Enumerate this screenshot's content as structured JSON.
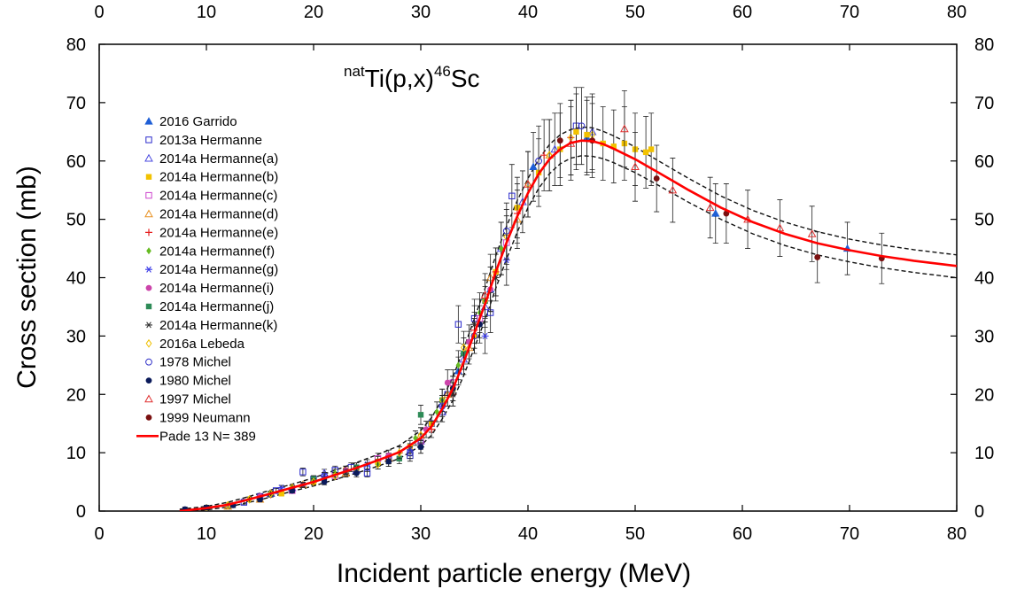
{
  "chart_data": {
    "type": "scatter",
    "title": {
      "pre_sup": "nat",
      "main1": "Ti(p,x)",
      "mid_sup": "46",
      "main2": "Sc"
    },
    "xlabel": "Incident particle  energy (MeV)",
    "ylabel": "Cross section (mb)",
    "xlim": [
      0,
      80
    ],
    "ylim": [
      0,
      80
    ],
    "x_ticks": [
      "0",
      "10",
      "20",
      "30",
      "40",
      "50",
      "60",
      "70",
      "80"
    ],
    "y_ticks": [
      "0",
      "10",
      "20",
      "30",
      "40",
      "50",
      "60",
      "70",
      "80"
    ],
    "grid": false,
    "legend_position": "upper-left",
    "series": [
      {
        "name": "2016 Garrido",
        "marker": "triangle-filled",
        "color": "#1f5fd6",
        "points": [
          [
            33.5,
            24
          ],
          [
            36.5,
            38
          ],
          [
            40.5,
            59
          ],
          [
            45.5,
            64
          ],
          [
            57.5,
            51
          ],
          [
            69.8,
            45
          ]
        ]
      },
      {
        "name": "2013a Hermanne",
        "marker": "square-open",
        "color": "#2a2acc",
        "points": [
          [
            13.5,
            1.5
          ],
          [
            15,
            2.5
          ],
          [
            16.5,
            3.5
          ],
          [
            19,
            6.7
          ],
          [
            20,
            5.5
          ],
          [
            22,
            7
          ],
          [
            23.5,
            7.5
          ],
          [
            25,
            6.5
          ],
          [
            27,
            9
          ],
          [
            29,
            9.5
          ],
          [
            31,
            15
          ],
          [
            32.5,
            20
          ],
          [
            33.5,
            32
          ],
          [
            35,
            33
          ],
          [
            36.5,
            34
          ],
          [
            38.5,
            54
          ],
          [
            44.5,
            66
          ]
        ]
      },
      {
        "name": "2014a Hermanne(a)",
        "marker": "triangle-open",
        "color": "#4a4ae0",
        "points": [
          [
            16,
            3
          ],
          [
            18,
            4
          ],
          [
            21,
            6.5
          ],
          [
            24,
            7
          ],
          [
            27,
            9
          ],
          [
            30,
            12
          ],
          [
            32,
            17
          ],
          [
            34,
            26
          ],
          [
            36,
            35
          ],
          [
            37.5,
            45
          ],
          [
            39.5,
            53
          ],
          [
            42.5,
            62
          ],
          [
            46,
            65
          ]
        ]
      },
      {
        "name": "2014a Hermanne(b)",
        "marker": "square-filled",
        "color": "#f2c200",
        "points": [
          [
            17,
            3
          ],
          [
            20,
            5
          ],
          [
            23,
            7
          ],
          [
            26,
            8.5
          ],
          [
            29,
            11
          ],
          [
            31,
            15
          ],
          [
            33,
            21
          ],
          [
            35,
            30
          ],
          [
            37,
            41
          ],
          [
            39,
            52
          ],
          [
            41,
            58
          ],
          [
            43,
            62
          ],
          [
            44.5,
            65
          ],
          [
            45.5,
            64.5
          ],
          [
            47,
            63
          ],
          [
            48,
            62.5
          ],
          [
            49,
            63
          ],
          [
            50,
            62
          ],
          [
            51,
            61.5
          ],
          [
            51.5,
            62
          ]
        ]
      },
      {
        "name": "2014a  Hermanne(c)",
        "marker": "square-open",
        "color": "#cc44cc",
        "points": [
          [
            18,
            3.5
          ],
          [
            22,
            6
          ],
          [
            26,
            9
          ],
          [
            30,
            12
          ],
          [
            33,
            22
          ],
          [
            35.5,
            33
          ],
          [
            38,
            46
          ]
        ]
      },
      {
        "name": "2014a Hermanne(d)",
        "marker": "triangle-open",
        "color": "#e89020",
        "points": [
          [
            12,
            0.8
          ],
          [
            15,
            2
          ],
          [
            19,
            4.5
          ],
          [
            23,
            6.5
          ],
          [
            27,
            9
          ],
          [
            30,
            13
          ],
          [
            32.5,
            20
          ],
          [
            34.5,
            28
          ],
          [
            36.5,
            40
          ],
          [
            39,
            50
          ],
          [
            42,
            61
          ]
        ]
      },
      {
        "name": "2014a Hermanne(e)",
        "marker": "plus",
        "color": "#e62020",
        "points": [
          [
            16,
            2.8
          ],
          [
            20,
            5
          ],
          [
            24,
            7.5
          ],
          [
            28,
            10
          ],
          [
            31,
            14
          ],
          [
            33,
            20
          ],
          [
            35,
            31
          ],
          [
            37,
            41
          ],
          [
            39,
            51
          ],
          [
            41.5,
            61
          ],
          [
            44,
            64
          ]
        ]
      },
      {
        "name": "2014a Hermanne(f)",
        "marker": "diamond-filled",
        "color": "#66bb22",
        "points": [
          [
            14,
            2
          ],
          [
            18,
            4
          ],
          [
            22,
            6.5
          ],
          [
            26,
            8
          ],
          [
            29.5,
            12.5
          ],
          [
            31.5,
            17
          ],
          [
            33.5,
            25
          ],
          [
            35.5,
            34
          ],
          [
            37.5,
            45
          ]
        ]
      },
      {
        "name": "2014a Hermanne(g)",
        "marker": "asterisk",
        "color": "#3a3ae8",
        "points": [
          [
            17,
            4
          ],
          [
            21,
            6
          ],
          [
            25,
            8
          ],
          [
            29,
            10.5
          ],
          [
            32,
            18
          ],
          [
            34,
            27
          ],
          [
            36,
            30
          ],
          [
            38,
            43
          ]
        ]
      },
      {
        "name": "2014a Hermanne(i)",
        "marker": "circle-filled",
        "color": "#cc44aa",
        "points": [
          [
            15,
            2.5
          ],
          [
            19,
            4.5
          ],
          [
            23,
            7
          ],
          [
            27,
            9.5
          ],
          [
            30.5,
            14
          ],
          [
            32.5,
            22
          ],
          [
            34.5,
            29
          ],
          [
            36.5,
            38
          ]
        ]
      },
      {
        "name": "2014a Hermanne(j)",
        "marker": "square-filled",
        "color": "#2e8b57",
        "points": [
          [
            16,
            3
          ],
          [
            20,
            5.5
          ],
          [
            24,
            7.5
          ],
          [
            28,
            9
          ],
          [
            30,
            16.5
          ],
          [
            32,
            19
          ],
          [
            34,
            27
          ],
          [
            36,
            36
          ]
        ]
      },
      {
        "name": "2014a Hermanne(k)",
        "marker": "asterisk",
        "color": "#333333",
        "points": [
          [
            15,
            2
          ],
          [
            19,
            4.5
          ],
          [
            23,
            6.5
          ],
          [
            27,
            8.5
          ],
          [
            30,
            11
          ],
          [
            33,
            20
          ],
          [
            35,
            32
          ],
          [
            37,
            40
          ]
        ]
      },
      {
        "name": "2016a Lebeda",
        "marker": "diamond-open",
        "color": "#f0c000",
        "points": [
          [
            10,
            0.5
          ],
          [
            12,
            1
          ],
          [
            14,
            2
          ],
          [
            16,
            3
          ],
          [
            18,
            4
          ],
          [
            20,
            5
          ],
          [
            22,
            6
          ],
          [
            24,
            7
          ],
          [
            26,
            8
          ],
          [
            28,
            10
          ],
          [
            30,
            13
          ],
          [
            32,
            19
          ],
          [
            34,
            28
          ],
          [
            36,
            36
          ],
          [
            38,
            47
          ],
          [
            40,
            56
          ],
          [
            42,
            61
          ],
          [
            44,
            64
          ],
          [
            46,
            64.5
          ]
        ]
      },
      {
        "name": "1978 Michel",
        "marker": "circle-open",
        "color": "#3030c8",
        "points": [
          [
            21,
            6
          ],
          [
            25,
            7.5
          ],
          [
            29,
            10
          ],
          [
            32,
            18
          ],
          [
            35,
            30
          ],
          [
            38,
            48
          ],
          [
            41,
            60
          ],
          [
            45,
            66
          ]
        ]
      },
      {
        "name": "1980 Michel",
        "marker": "circle-filled",
        "color": "#0a1a5a",
        "points": [
          [
            8,
            0.3
          ],
          [
            10,
            0.6
          ],
          [
            12.5,
            1
          ],
          [
            15,
            2
          ],
          [
            18,
            3.5
          ],
          [
            21,
            5
          ],
          [
            24,
            6.5
          ],
          [
            27,
            8.5
          ],
          [
            30,
            11
          ],
          [
            33,
            21
          ],
          [
            35.5,
            32
          ]
        ]
      },
      {
        "name": "1997 Michel",
        "marker": "triangle-open",
        "color": "#e03030",
        "points": [
          [
            36,
            37
          ],
          [
            40,
            56
          ],
          [
            44,
            63
          ],
          [
            49,
            65.5
          ],
          [
            50,
            59
          ],
          [
            53.5,
            55
          ],
          [
            57,
            52
          ],
          [
            60.5,
            50
          ],
          [
            63.5,
            48.5
          ],
          [
            66.5,
            47.5
          ]
        ]
      },
      {
        "name": "1999 Neumann",
        "marker": "circle-filled",
        "color": "#7a1010",
        "points": [
          [
            43,
            63.5
          ],
          [
            46,
            63.5
          ],
          [
            52,
            57
          ],
          [
            58.5,
            51
          ],
          [
            67,
            43.5
          ],
          [
            73,
            43.3
          ]
        ]
      }
    ],
    "fit": {
      "name": "Pade 13 N= 389",
      "color": "#ff0000",
      "x": [
        7.5,
        10,
        12,
        14,
        16,
        18,
        20,
        22,
        24,
        26,
        28,
        30,
        31,
        32,
        33,
        34,
        35,
        36,
        37,
        38,
        39,
        40,
        41,
        42,
        43,
        44,
        45,
        46,
        47,
        48,
        50,
        52,
        55,
        58,
        61,
        64,
        67,
        70,
        73,
        76,
        80
      ],
      "y": [
        0,
        0.5,
        1.1,
        2,
        3,
        4,
        5,
        6.2,
        7.4,
        8.7,
        10.1,
        12.5,
        14.5,
        17.5,
        21,
        25.5,
        30.5,
        35.5,
        41,
        46,
        50.5,
        54.5,
        57.8,
        60.3,
        62,
        63.1,
        63.5,
        63.4,
        62.9,
        62.1,
        60.3,
        58.2,
        55,
        52,
        49.5,
        47.5,
        45.9,
        44.7,
        43.7,
        42.9,
        42
      ],
      "band_upper": [
        7.5,
        10,
        12,
        14,
        16,
        18,
        20,
        22,
        24,
        26,
        28,
        30,
        31,
        32,
        33,
        34,
        35,
        36,
        37,
        38,
        39,
        40,
        41,
        42,
        43,
        44,
        45,
        46,
        47,
        48,
        50,
        52,
        55,
        58,
        61,
        64,
        67,
        70,
        73,
        76,
        80
      ],
      "band_upper_y": [
        0.3,
        0.8,
        1.5,
        2.5,
        3.6,
        4.6,
        5.7,
        7,
        8.3,
        9.7,
        11.2,
        13.8,
        16,
        19.2,
        23,
        27.8,
        33,
        38.2,
        43.8,
        48.8,
        53.2,
        57,
        60.3,
        62.8,
        64.5,
        65.4,
        65.8,
        65.7,
        65.1,
        64.3,
        62.4,
        60.2,
        57,
        54,
        51.5,
        49.5,
        47.9,
        46.6,
        45.6,
        44.8,
        43.9
      ],
      "band_lower_y": [
        0,
        0.2,
        0.7,
        1.5,
        2.4,
        3.4,
        4.3,
        5.4,
        6.5,
        7.7,
        9,
        11.2,
        13,
        15.8,
        19,
        23.2,
        28,
        32.8,
        38.2,
        43.2,
        47.8,
        52,
        55.3,
        57.8,
        59.5,
        60.5,
        60.9,
        60.8,
        60.4,
        59.7,
        58,
        56,
        52.9,
        50,
        47.5,
        45.5,
        43.9,
        42.7,
        41.7,
        40.9,
        40
      ]
    }
  }
}
